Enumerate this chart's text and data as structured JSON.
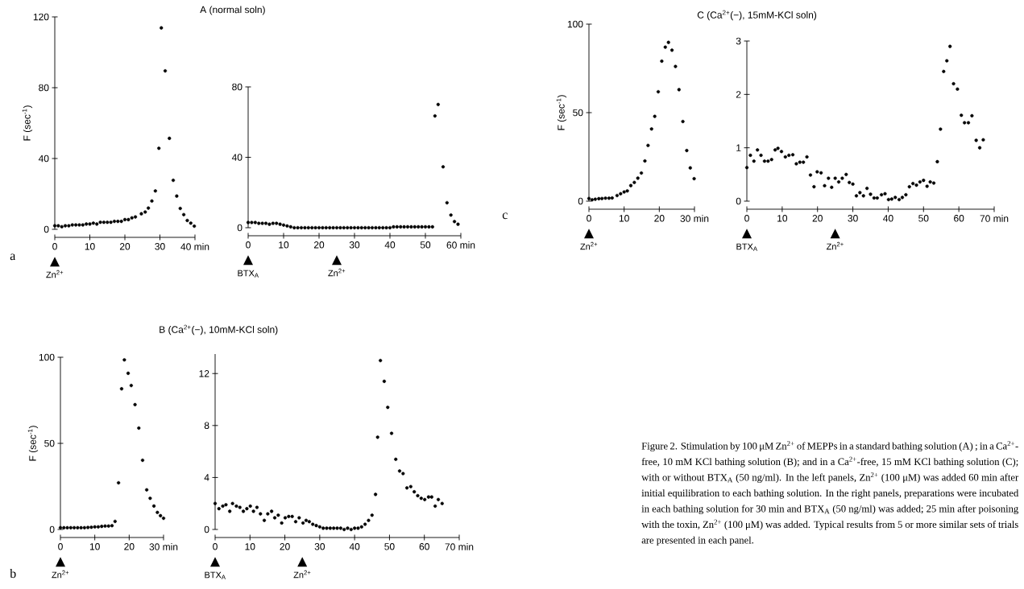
{
  "chart_data": [
    {
      "type": "scatter",
      "ylabel": "F (sec$^{-1}$)",
      "marker": "circle",
      "color": "#000000",
      "x": [
        0,
        1,
        2,
        3,
        4,
        5,
        6,
        7,
        8,
        9,
        10,
        11,
        12,
        13,
        14,
        15,
        16,
        17,
        18,
        19,
        20,
        21,
        22,
        23,
        24.7,
        25.8,
        26.7,
        27.7,
        28.7,
        29.7,
        30.4,
        31.5,
        32.7,
        33.8,
        34.8,
        35.8,
        36.8,
        37.8,
        38.8,
        39.8
      ],
      "values": [
        2,
        2,
        1.5,
        2,
        2,
        2.5,
        2.5,
        2.5,
        2.5,
        3,
        3,
        3.5,
        3,
        4,
        4,
        4,
        4,
        4.5,
        4.5,
        4.5,
        5.5,
        5.5,
        6.5,
        7,
        8.8,
        9.8,
        12,
        16,
        21.7,
        45.8,
        113.8,
        89.5,
        51.4,
        27.7,
        18.8,
        11.8,
        8.3,
        5,
        3.5,
        1.8
      ],
      "xlim": [
        0,
        40
      ],
      "ylim": [
        0,
        120
      ],
      "xticks": [
        0,
        10,
        20,
        30,
        {
          "value": 40,
          "label": "40 min"
        }
      ],
      "yticks": [
        0,
        40,
        80,
        120
      ],
      "annotations": [
        "a",
        "Zn$^{2+}$"
      ]
    },
    {
      "type": "scatter",
      "title": "A (normal soln)",
      "marker": "circle",
      "color": "#000000",
      "x": [
        0,
        1,
        2,
        3,
        4,
        5,
        6,
        7,
        8,
        9,
        10,
        11,
        12,
        13,
        14,
        15,
        16,
        17,
        18,
        19,
        20,
        21,
        22,
        23,
        24,
        25,
        26,
        27,
        28,
        29,
        30,
        31,
        32,
        33,
        34,
        35,
        36,
        37,
        38,
        39,
        40,
        41,
        42,
        43,
        44,
        45,
        46,
        47,
        48,
        49,
        50,
        51,
        52,
        52.7,
        53.6,
        55,
        56.1,
        57.2,
        58.2,
        59.2
      ],
      "values": [
        3,
        3,
        3,
        2.5,
        2.5,
        2.5,
        2,
        2.5,
        2.5,
        2,
        1.5,
        1,
        0.5,
        0,
        0,
        0,
        0,
        0,
        0,
        0,
        0,
        0,
        0,
        0,
        0,
        0,
        0,
        0,
        0,
        0,
        0,
        0,
        0,
        0,
        0,
        0,
        0,
        0,
        0,
        0,
        0,
        0.5,
        0.5,
        0.5,
        0.5,
        0.5,
        0.5,
        0.5,
        0.5,
        0.5,
        0.5,
        0.5,
        0.5,
        63.5,
        70,
        34.6,
        14.2,
        7.2,
        3.5,
        2
      ],
      "xlim": [
        0,
        60
      ],
      "ylim": [
        0,
        80
      ],
      "xticks": [
        0,
        10,
        20,
        30,
        40,
        50,
        {
          "value": 60,
          "label": "60 min"
        }
      ],
      "yticks": [
        0,
        40,
        80
      ],
      "annotations": [
        "BTX$_{A}$",
        "Zn$^{2+}$"
      ]
    },
    {
      "type": "scatter",
      "ylabel": "F (sec$^{-1}$)",
      "marker": "circle",
      "color": "#000000",
      "x": [
        0,
        1,
        2,
        3,
        4,
        5,
        6,
        7,
        8,
        9,
        10,
        11,
        12,
        13,
        14,
        15,
        15.9,
        16.9,
        17.8,
        18.6,
        19.7,
        20.6,
        21.7,
        22.8,
        23.9,
        25.1,
        26.1,
        27.2,
        28.2,
        29.1,
        30
      ],
      "values": [
        1,
        1,
        1,
        1,
        1,
        1,
        1,
        1,
        1.2,
        1.3,
        1.5,
        1.5,
        1.8,
        2,
        2,
        2.2,
        4.7,
        27.1,
        81.7,
        98.5,
        90.7,
        83.6,
        72.5,
        58.9,
        40.2,
        23,
        18.1,
        13.6,
        9.9,
        8,
        6.5
      ],
      "xlim": [
        0,
        30
      ],
      "ylim": [
        0,
        100
      ],
      "xticks": [
        0,
        10,
        20,
        {
          "value": 30,
          "label": "30 min"
        }
      ],
      "yticks": [
        0,
        50,
        100
      ],
      "annotations": [
        "b",
        "Zn$^{2+}$"
      ]
    },
    {
      "type": "scatter",
      "title": "B (Ca$^{2+}$(−), 10mM-KCl soln)",
      "marker": "circle",
      "color": "#000000",
      "x": [
        0,
        1.1,
        2.2,
        3.1,
        4.2,
        5,
        6.1,
        7.1,
        8.1,
        9.1,
        10.1,
        11,
        12,
        13,
        14.1,
        15.1,
        16.2,
        17.1,
        18.1,
        19.1,
        20.1,
        21.1,
        22.1,
        23.1,
        24.1,
        25.2,
        26.1,
        27,
        28,
        29,
        30,
        31,
        32,
        33,
        34,
        35,
        36,
        37,
        38,
        39,
        40,
        41,
        42,
        43,
        44,
        45,
        46,
        46.6,
        47.4,
        48.5,
        49.5,
        50.6,
        51.8,
        52.9,
        53.9,
        55,
        56.1,
        57.1,
        58.1,
        59.1,
        60.1,
        61.2,
        62.1,
        63.1,
        64,
        65.1
      ],
      "values": [
        2,
        1.6,
        1.8,
        1.9,
        1.4,
        2,
        1.8,
        1.7,
        1.4,
        1.6,
        1.8,
        1.4,
        1.7,
        1.2,
        0.7,
        1.2,
        1.4,
        0.9,
        1.1,
        0.5,
        0.9,
        1,
        1,
        0.6,
        0.9,
        0.5,
        0.7,
        0.6,
        0.4,
        0.3,
        0.2,
        0.1,
        0.1,
        0.1,
        0.1,
        0.1,
        0.1,
        0,
        0.1,
        0,
        0.1,
        0.1,
        0.2,
        0.4,
        0.7,
        1.1,
        2.7,
        7.1,
        13,
        11.4,
        9.4,
        7.4,
        5.4,
        4.5,
        4.3,
        3.2,
        3.3,
        2.9,
        2.6,
        2.4,
        2.3,
        2.5,
        2.5,
        1.8,
        2.3,
        2
      ],
      "xlim": [
        0,
        70
      ],
      "ylim": [
        0,
        13.5
      ],
      "xticks": [
        0,
        10,
        20,
        30,
        40,
        50,
        60,
        {
          "value": 70,
          "label": "70 min"
        }
      ],
      "yticks": [
        0,
        4,
        8,
        12
      ],
      "annotations": [
        "BTX$_{A}$",
        "Zn$^{2+}$"
      ]
    },
    {
      "type": "scatter",
      "ylabel": "F (sec$^{-1}$)",
      "marker": "circle",
      "color": "#000000",
      "x": [
        0,
        0.9,
        1.8,
        2.8,
        3.7,
        4.7,
        5.7,
        6.6,
        8,
        9,
        10,
        10.9,
        11.9,
        12.9,
        13.9,
        14.9,
        15.9,
        16.8,
        17.8,
        18.7,
        19.7,
        20.7,
        21.7,
        22.6,
        23.6,
        24.6,
        25.6,
        26.7,
        27.8,
        28.8,
        29.9
      ],
      "values": [
        1.5,
        0.8,
        1.1,
        1.4,
        1.5,
        1.7,
        1.7,
        1.8,
        3.2,
        4.2,
        5.2,
        5.8,
        8.8,
        10.6,
        13,
        15.9,
        22.7,
        31.5,
        40.8,
        47.9,
        61.8,
        79.1,
        87,
        89.7,
        85.3,
        76.1,
        63,
        45,
        28.6,
        18.8,
        12.7
      ],
      "xlim": [
        0,
        30
      ],
      "ylim": [
        0,
        100
      ],
      "xticks": [
        0,
        10,
        20,
        {
          "value": 30,
          "label": "30 min"
        }
      ],
      "yticks": [
        0,
        50,
        100
      ],
      "annotations": [
        "c",
        "Zn$^{2+}$"
      ]
    },
    {
      "type": "scatter",
      "title": "C (Ca$^{2+}$(−), 15mM-KCl soln)",
      "marker": "circle",
      "color": "#000000",
      "x": [
        0,
        1,
        2,
        3,
        4,
        5,
        6,
        7,
        8,
        8.8,
        9.8,
        10.9,
        11.9,
        13,
        14,
        15,
        16,
        17,
        18,
        19,
        19.9,
        21,
        22,
        23.1,
        24,
        25,
        26,
        27,
        28.1,
        29,
        30,
        31,
        32,
        33,
        34,
        35,
        36,
        36.9,
        38.1,
        39.1,
        40.1,
        41,
        42,
        43.1,
        44,
        45,
        46,
        47,
        48,
        49,
        50,
        51,
        51.9,
        52.9,
        53.9,
        54.8,
        55.7,
        56.6,
        57.5,
        58.5,
        59.6,
        60.7,
        61.6,
        62.7,
        63.7,
        64.9,
        65.9,
        66.9
      ],
      "values": [
        0.63,
        0.86,
        0.75,
        0.96,
        0.86,
        0.75,
        0.75,
        0.78,
        0.96,
        0.99,
        0.93,
        0.83,
        0.86,
        0.87,
        0.7,
        0.73,
        0.73,
        0.83,
        0.49,
        0.27,
        0.55,
        0.53,
        0.29,
        0.43,
        0.26,
        0.43,
        0.36,
        0.43,
        0.5,
        0.35,
        0.32,
        0.1,
        0.16,
        0.1,
        0.24,
        0.13,
        0.06,
        0.06,
        0.12,
        0.14,
        0.03,
        0.04,
        0.07,
        0.03,
        0.07,
        0.12,
        0.27,
        0.33,
        0.3,
        0.36,
        0.39,
        0.28,
        0.36,
        0.34,
        0.74,
        1.35,
        2.43,
        2.63,
        2.9,
        2.2,
        2.1,
        1.61,
        1.47,
        1.47,
        1.6,
        1.14,
        1.0,
        1.15
      ],
      "xlim": [
        0,
        70
      ],
      "ylim": [
        0,
        3
      ],
      "xticks": [
        0,
        10,
        20,
        30,
        40,
        50,
        60,
        {
          "value": 70,
          "label": "70 min"
        }
      ],
      "yticks": [
        0,
        1,
        2,
        3
      ],
      "annotations": [
        "BTX$_{A}$",
        "Zn$^{2+}$"
      ]
    },
    {
      "type": "other",
      "annotations": [
        "Figure 2. Stimulation by 100 μM Zn$^{2+}$ of MEPPs in a standard bathing solution (A) ; in a Ca$^{2+}$-free, 10 mM KCl bathing solution (B); and in a Ca$^{2+}$-free, 15 mM KCl bathing solution (C); with or without BTX$_{A}$ (50 ng/ml). In the left panels, Zn$^{2+}$ (100 μM) was added 60 min after initial equilibration to each bathing solution. In the right panels, preparations were incubated in each bathing solution for 30 min and BTX$_{A}$ (50 ng/ml) was added; 25 min after poisoning with the toxin, Zn$^{2+}$ (100 μM) was added. Typical results from 5 or more similar sets of trials are presented in each panel."
      ]
    }
  ]
}
